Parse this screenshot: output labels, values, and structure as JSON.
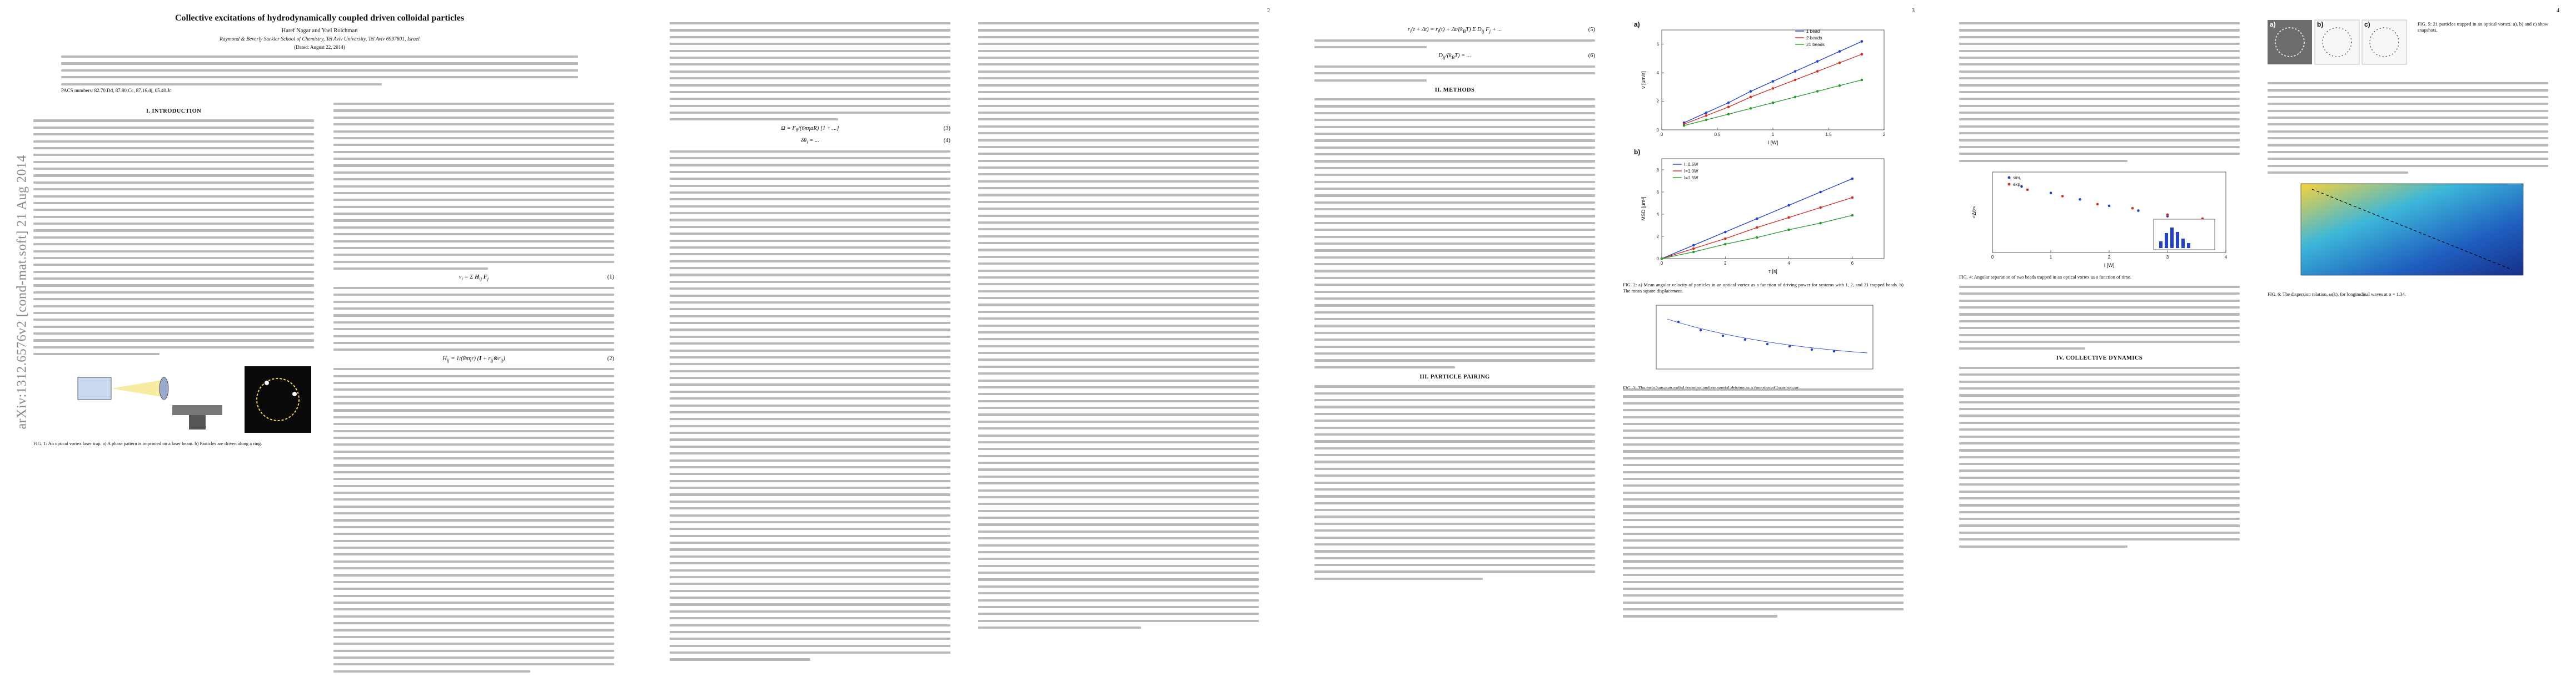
{
  "page1": {
    "page_number": "",
    "title": "Collective excitations of hydrodynamically coupled driven colloidal particles",
    "authors": "Haref Nagar and Yael Roichman",
    "affiliation": "Raymond & Beverly Sackler School of Chemistry, Tel Aviv University, Tel Aviv 6997801, Israel",
    "date": "(Dated: August 22, 2014)",
    "pacs": "PACS numbers: 82.70.Dd, 87.80.Cc, 87.16.dj, 05.40.Jc",
    "arxiv_stamp": "arXiv:1312.6576v2  [cond-mat.soft]  21 Aug 2014",
    "section_intro": "I.   INTRODUCTION",
    "fig1_caption": "FIG. 1: An optical vortex laser trap. a) A phase pattern is imprinted on a laser beam. b) Particles are driven along a ring."
  },
  "page2": {
    "page_number": "2"
  },
  "page3": {
    "page_number": "3",
    "section_methods": "II.   METHODS",
    "section_pairing": "III.   PARTICLE PAIRING",
    "fig2_caption": "FIG. 2: a) Mean angular velocity of particles in an optical vortex as a function of driving power for systems with 1, 2, and 21 trapped beads. b) The mean square displacement.",
    "fig3_caption": "FIG. 3: The ratio between radial trapping and tangential driving as a function of laser power.",
    "fig4_caption": "FIG. 4: Angular separation of two beads trapped in an optical vortex as a function of time."
  },
  "page4": {
    "page_number": "4",
    "section_collective": "IV.   COLLECTIVE DYNAMICS",
    "fig5_caption": "FIG. 5: 21 particles trapped in an optical vortex. a), b) and c) show snapshots.",
    "fig6_caption": "FIG. 6: The dispersion relation, ω(k), for longitudinal waves at α = 1.34."
  },
  "fig2a": {
    "panel": "a)",
    "legend": [
      "1 bead",
      "2 beads",
      "21 beads"
    ],
    "xlabel": "I [W]",
    "ylabel": "v [μm/s]",
    "xticks": [
      "0",
      "0.5",
      "1",
      "1.5",
      "2"
    ],
    "yticks": [
      "0",
      "2",
      "4",
      "6"
    ]
  },
  "fig2b": {
    "panel": "b)",
    "legend": [
      "I=0.5W",
      "I=1.0W",
      "I=1.5W"
    ],
    "xlabel": "τ [s]",
    "ylabel": "MSD [μm²]",
    "xticks": [
      "0",
      "2",
      "4",
      "6"
    ],
    "yticks": [
      "0",
      "2",
      "4",
      "6",
      "8"
    ]
  },
  "fig4": {
    "legend": [
      "sim.",
      "exp."
    ],
    "xlabel": "I [W]",
    "ylabel": "<Δθ>",
    "xticks": [
      "0",
      "1",
      "2",
      "3",
      "4"
    ]
  },
  "fig5": {
    "panels": [
      "a)",
      "b)",
      "c)"
    ]
  },
  "colors": {
    "series1": "#1f3fd6",
    "series2": "#d62b1f",
    "series3": "#2a9a2a",
    "text_gray": "#b9b9b9"
  },
  "chart_data": [
    {
      "type": "line",
      "title": "",
      "xlabel": "I [W]",
      "ylabel": "v [μm/s]",
      "xlim": [
        0,
        2
      ],
      "ylim": [
        0,
        7
      ],
      "series": [
        {
          "name": "1 bead",
          "x": [
            0.2,
            0.4,
            0.6,
            0.8,
            1.0,
            1.2,
            1.4,
            1.6,
            1.8
          ],
          "y": [
            0.5,
            1.2,
            1.9,
            2.7,
            3.4,
            4.1,
            4.8,
            5.5,
            6.2
          ]
        },
        {
          "name": "2 beads",
          "x": [
            0.2,
            0.4,
            0.6,
            0.8,
            1.0,
            1.2,
            1.4,
            1.6,
            1.8
          ],
          "y": [
            0.4,
            1.0,
            1.6,
            2.3,
            2.9,
            3.5,
            4.1,
            4.7,
            5.3
          ]
        },
        {
          "name": "21 beads",
          "x": [
            0.2,
            0.4,
            0.6,
            0.8,
            1.0,
            1.2,
            1.4,
            1.6,
            1.8
          ],
          "y": [
            0.3,
            0.7,
            1.1,
            1.5,
            1.9,
            2.3,
            2.7,
            3.1,
            3.5
          ]
        }
      ]
    },
    {
      "type": "line",
      "title": "",
      "xlabel": "τ [s]",
      "ylabel": "MSD [μm²]",
      "xlim": [
        0,
        7
      ],
      "ylim": [
        0,
        9
      ],
      "series": [
        {
          "name": "I=0.5W",
          "x": [
            0,
            1,
            2,
            3,
            4,
            5,
            6
          ],
          "y": [
            0,
            1.2,
            2.4,
            3.6,
            4.8,
            6.0,
            7.2
          ]
        },
        {
          "name": "I=1.0W",
          "x": [
            0,
            1,
            2,
            3,
            4,
            5,
            6
          ],
          "y": [
            0,
            0.9,
            1.8,
            2.8,
            3.7,
            4.6,
            5.5
          ]
        },
        {
          "name": "I=1.5W",
          "x": [
            0,
            1,
            2,
            3,
            4,
            5,
            6
          ],
          "y": [
            0,
            0.6,
            1.3,
            1.9,
            2.6,
            3.2,
            3.9
          ]
        }
      ]
    },
    {
      "type": "scatter",
      "title": "",
      "xlabel": "I [W]",
      "ylabel": "<Δθ>",
      "xlim": [
        0,
        4
      ],
      "ylim": [
        0,
        1
      ],
      "series": [
        {
          "name": "sim.",
          "x": [
            0.5,
            1.0,
            1.5,
            2.0,
            2.5,
            3.0,
            3.5
          ],
          "y": [
            0.82,
            0.74,
            0.66,
            0.58,
            0.52,
            0.45,
            0.4
          ]
        },
        {
          "name": "exp.",
          "x": [
            0.6,
            1.2,
            1.8,
            2.4,
            3.0,
            3.6
          ],
          "y": [
            0.78,
            0.7,
            0.6,
            0.55,
            0.47,
            0.42
          ]
        }
      ]
    }
  ]
}
